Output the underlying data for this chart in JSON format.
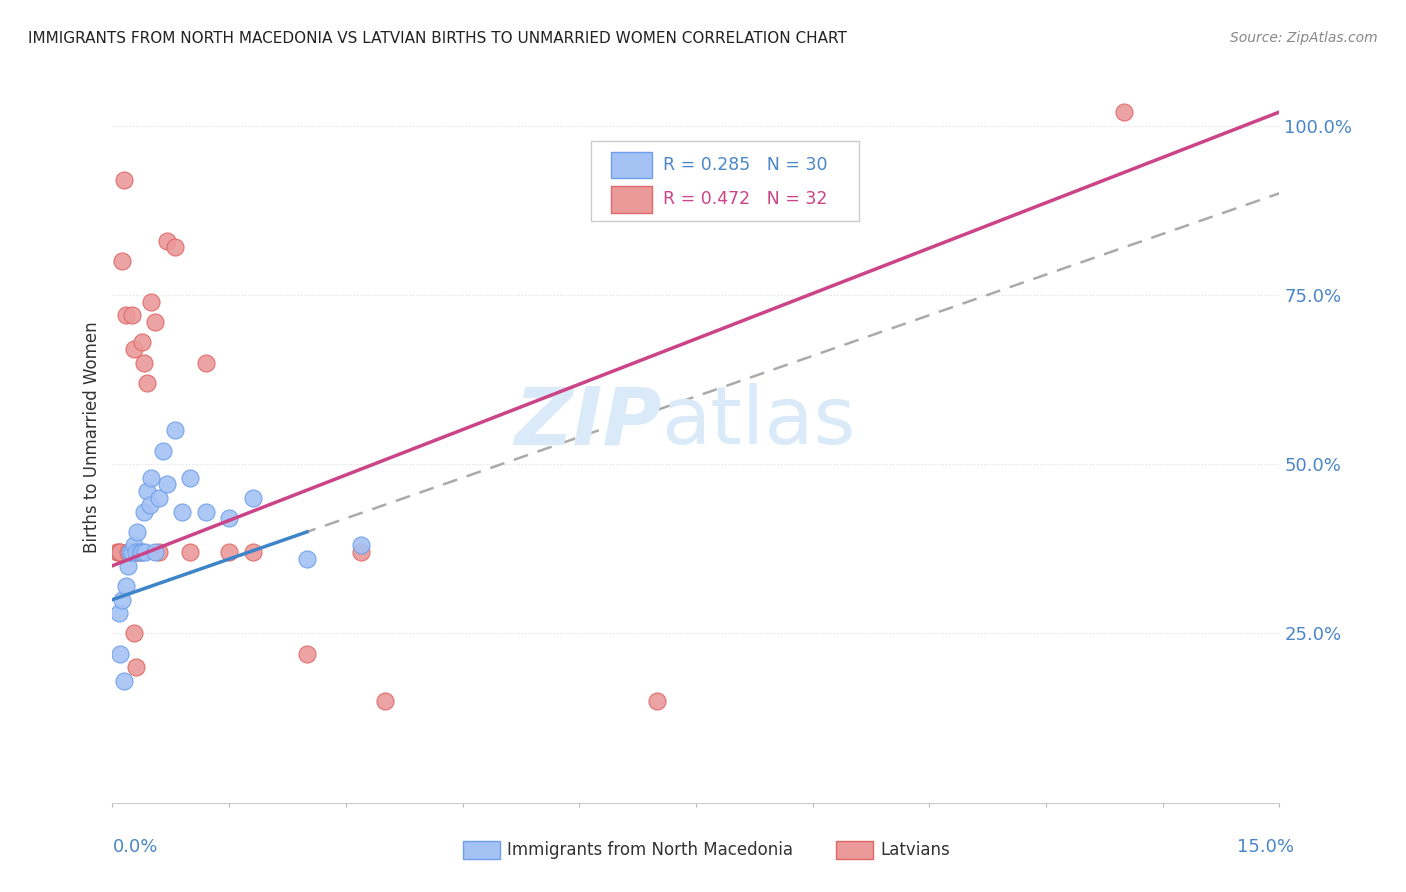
{
  "title": "IMMIGRANTS FROM NORTH MACEDONIA VS LATVIAN BIRTHS TO UNMARRIED WOMEN CORRELATION CHART",
  "source": "Source: ZipAtlas.com",
  "ylabel": "Births to Unmarried Women",
  "xlim": [
    0.0,
    15.0
  ],
  "ylim": [
    0.0,
    108.0
  ],
  "ytick_vals": [
    25.0,
    50.0,
    75.0,
    100.0
  ],
  "ytick_labels": [
    "25.0%",
    "50.0%",
    "75.0%",
    "100.0%"
  ],
  "blue_color": "#a4c2f4",
  "blue_edge_color": "#6d9eeb",
  "pink_color": "#ea9999",
  "pink_edge_color": "#e06666",
  "blue_line_color": "#3d85c8",
  "pink_line_color": "#cc4488",
  "axis_label_color": "#4a86c8",
  "title_color": "#222222",
  "watermark_color": "#daeaf8",
  "grid_color": "#dddddd",
  "legend_border_color": "#cccccc",
  "blue_x": [
    0.08,
    0.1,
    0.12,
    0.15,
    0.18,
    0.2,
    0.22,
    0.25,
    0.28,
    0.3,
    0.32,
    0.35,
    0.38,
    0.4,
    0.42,
    0.45,
    0.48,
    0.5,
    0.55,
    0.6,
    0.65,
    0.7,
    0.8,
    0.9,
    1.0,
    1.2,
    1.5,
    1.8,
    2.5,
    3.2
  ],
  "blue_y": [
    28.0,
    22.0,
    30.0,
    18.0,
    32.0,
    35.0,
    37.0,
    37.0,
    38.0,
    37.0,
    40.0,
    37.0,
    37.0,
    43.0,
    37.0,
    46.0,
    44.0,
    48.0,
    37.0,
    45.0,
    52.0,
    47.0,
    55.0,
    43.0,
    48.0,
    43.0,
    42.0,
    45.0,
    36.0,
    38.0
  ],
  "pink_x": [
    0.06,
    0.08,
    0.1,
    0.12,
    0.15,
    0.18,
    0.2,
    0.22,
    0.25,
    0.28,
    0.3,
    0.32,
    0.35,
    0.38,
    0.4,
    0.45,
    0.5,
    0.55,
    0.6,
    0.7,
    0.8,
    1.0,
    1.2,
    1.5,
    1.8,
    2.5,
    3.5,
    0.28,
    0.3,
    3.2,
    7.0,
    13.0
  ],
  "pink_y": [
    37.0,
    37.0,
    37.0,
    80.0,
    92.0,
    72.0,
    37.0,
    37.0,
    72.0,
    67.0,
    37.0,
    37.0,
    37.0,
    68.0,
    65.0,
    62.0,
    74.0,
    71.0,
    37.0,
    83.0,
    82.0,
    37.0,
    65.0,
    37.0,
    37.0,
    22.0,
    15.0,
    25.0,
    20.0,
    37.0,
    15.0,
    102.0
  ],
  "blue_line_x0": 0.0,
  "blue_line_y0": 30.0,
  "blue_line_x1": 15.0,
  "blue_line_y1": 90.0,
  "pink_line_x0": 0.0,
  "pink_line_y0": 35.0,
  "pink_line_x1": 15.0,
  "pink_line_y1": 102.0
}
